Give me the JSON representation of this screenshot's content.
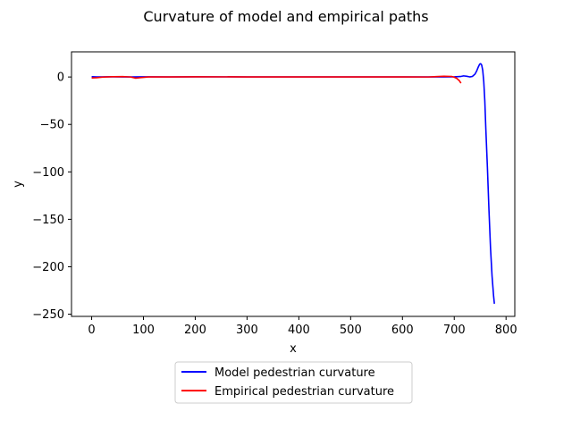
{
  "chart_data": {
    "type": "line",
    "title": "Curvature of model and empirical paths",
    "xlabel": "x",
    "ylabel": "y",
    "xlim": [
      -38.9,
      816.9
    ],
    "ylim": [
      -252.3,
      26.5
    ],
    "xticks": [
      0,
      100,
      200,
      300,
      400,
      500,
      600,
      700,
      800
    ],
    "yticks": [
      0,
      -50,
      -100,
      -150,
      -200,
      -250
    ],
    "grid": false,
    "legend_position": "bottom-center",
    "series": [
      {
        "name": "Model pedestrian curvature",
        "color": "#0000ff",
        "points": [
          [
            0,
            0.3
          ],
          [
            10,
            0.1
          ],
          [
            30,
            0.2
          ],
          [
            60,
            0.1
          ],
          [
            80,
            0.1
          ],
          [
            100,
            0.2
          ],
          [
            150,
            0.1
          ],
          [
            200,
            0.2
          ],
          [
            300,
            0.1
          ],
          [
            400,
            0.1
          ],
          [
            500,
            0.1
          ],
          [
            600,
            0.1
          ],
          [
            680,
            0.1
          ],
          [
            700,
            0.2
          ],
          [
            712,
            0.5
          ],
          [
            718,
            1.2
          ],
          [
            724,
            0.8
          ],
          [
            730,
            0.1
          ],
          [
            735,
            0.6
          ],
          [
            740,
            3.0
          ],
          [
            743,
            6.0
          ],
          [
            746,
            10.0
          ],
          [
            749,
            13.5
          ],
          [
            751,
            14.0
          ],
          [
            753,
            12.5
          ],
          [
            755,
            7.0
          ],
          [
            757,
            -5.0
          ],
          [
            759,
            -25.0
          ],
          [
            761,
            -55.0
          ],
          [
            764,
            -95.0
          ],
          [
            767,
            -140.0
          ],
          [
            770,
            -180.0
          ],
          [
            773,
            -210.0
          ],
          [
            776,
            -231.0
          ],
          [
            777.5,
            -239.0
          ]
        ]
      },
      {
        "name": "Empirical pedestrian curvature",
        "color": "#ff0000",
        "points": [
          [
            0,
            -1.0
          ],
          [
            10,
            -0.8
          ],
          [
            20,
            -0.2
          ],
          [
            40,
            0.3
          ],
          [
            60,
            0.4
          ],
          [
            75,
            0.0
          ],
          [
            85,
            -1.2
          ],
          [
            95,
            -0.6
          ],
          [
            110,
            0.1
          ],
          [
            150,
            0.1
          ],
          [
            200,
            0.2
          ],
          [
            300,
            0.1
          ],
          [
            400,
            0.1
          ],
          [
            500,
            0.1
          ],
          [
            600,
            0.1
          ],
          [
            650,
            0.0
          ],
          [
            665,
            0.4
          ],
          [
            680,
            0.8
          ],
          [
            695,
            0.6
          ],
          [
            700,
            -0.2
          ],
          [
            705,
            -1.5
          ],
          [
            710,
            -4.0
          ],
          [
            713,
            -6.5
          ]
        ]
      }
    ]
  }
}
